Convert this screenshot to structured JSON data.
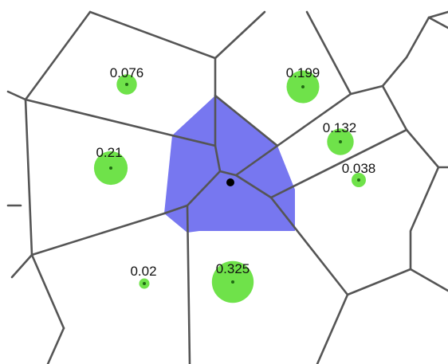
{
  "diagram": {
    "weights": [
      {
        "id": "w1",
        "label": "0.076",
        "weight": 0.076
      },
      {
        "id": "w2",
        "label": "0.199",
        "weight": 0.199
      },
      {
        "id": "w3",
        "label": "0.132",
        "weight": 0.132
      },
      {
        "id": "w4",
        "label": "0.21",
        "weight": 0.21
      },
      {
        "id": "w5",
        "label": "0.038",
        "weight": 0.038
      },
      {
        "id": "w6",
        "label": "0.02",
        "weight": 0.02
      },
      {
        "id": "w7",
        "label": "0.325",
        "weight": 0.325
      }
    ],
    "colors": {
      "region_fill": "#7777f0",
      "disc_fill": "#6fe24a",
      "edge_stroke": "#555555",
      "query_point": "#000000"
    }
  }
}
